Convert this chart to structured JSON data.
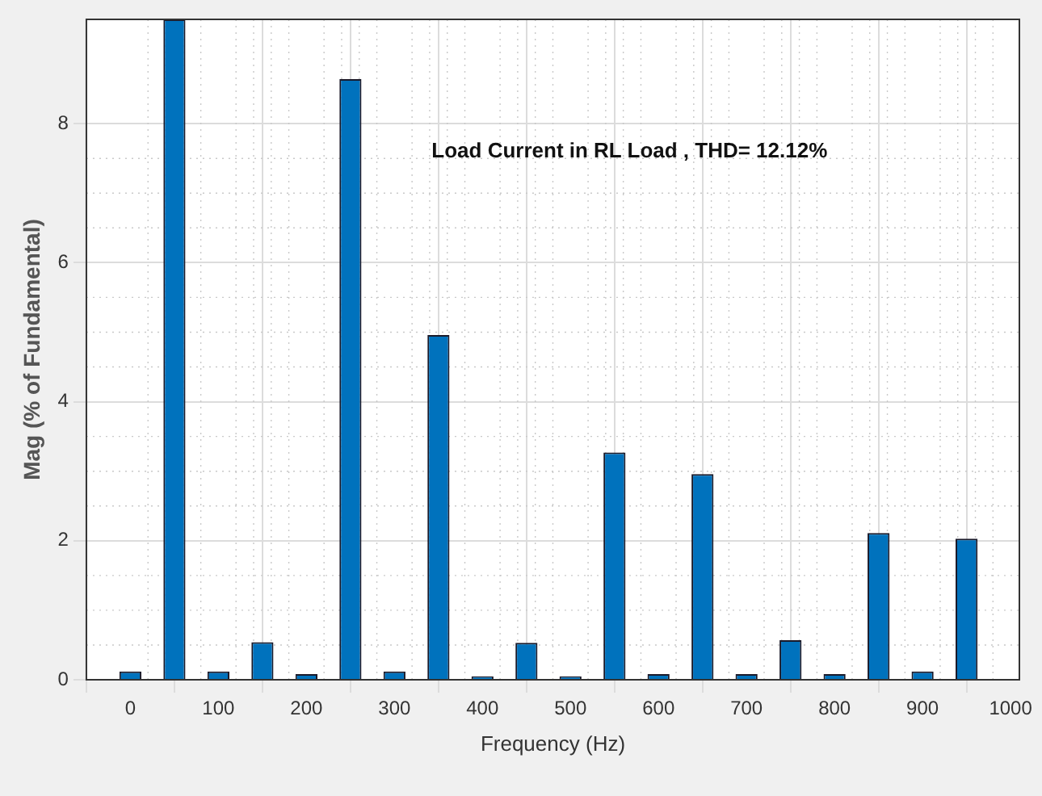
{
  "chart_data": {
    "type": "bar",
    "xlabel": "Frequency (Hz)",
    "ylabel": "Mag (% of Fundamental)",
    "annotations": [
      "Load Current in RL Load , THD= 12.12%"
    ],
    "x": [
      0,
      50,
      100,
      150,
      200,
      250,
      300,
      350,
      400,
      450,
      500,
      550,
      600,
      650,
      700,
      750,
      800,
      850,
      900,
      950
    ],
    "values": [
      0.12,
      9.5,
      0.12,
      0.54,
      0.08,
      8.64,
      0.12,
      4.96,
      0.05,
      0.53,
      0.05,
      3.27,
      0.08,
      2.96,
      0.08,
      0.57,
      0.08,
      2.11,
      0.12,
      2.03
    ],
    "color": "#0072bd",
    "xlim": [
      -50,
      1010
    ],
    "xticks": [
      0,
      100,
      200,
      300,
      400,
      500,
      600,
      700,
      800,
      900,
      1000
    ],
    "ylim": [
      0,
      9.5
    ],
    "yticks": [
      0,
      2,
      4,
      6,
      8
    ],
    "grid": true
  }
}
